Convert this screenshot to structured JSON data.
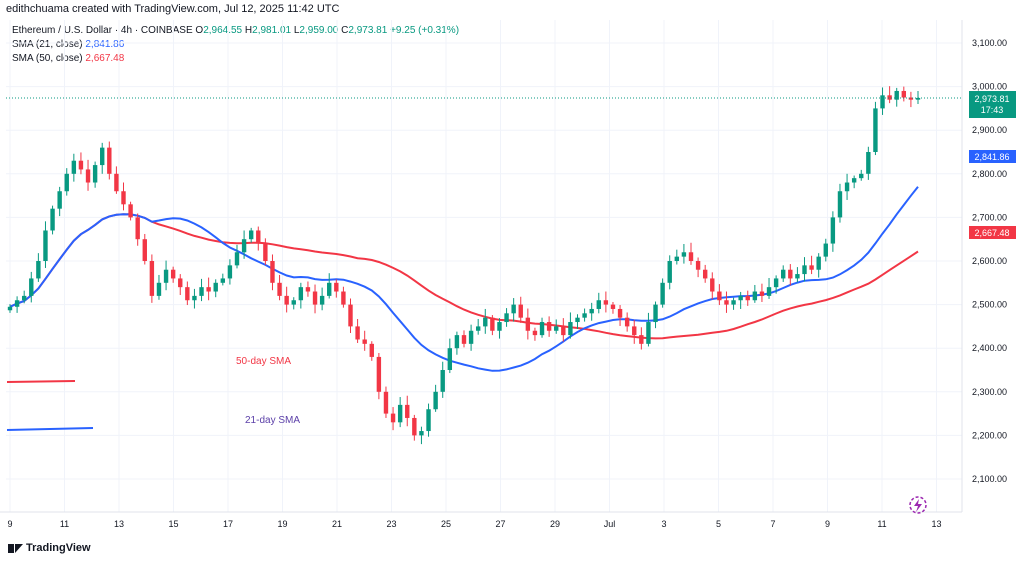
{
  "credit": "edithchuama created with TradingView.com, Jul 12, 2025 11:42 UTC",
  "legend": {
    "symbol": "Ethereum / U.S. Dollar · 4h · COINBASE",
    "o_label": "O",
    "o_value": "2,964.55",
    "h_label": "H",
    "h_value": "2,981.01",
    "l_label": "L",
    "l_value": "2,959.00",
    "c_label": "C",
    "c_value": "2,973.81",
    "change": "+9.25 (+0.31%)",
    "sma21_label": "SMA (21, close)",
    "sma21_value": "2,841.86",
    "sma50_label": "SMA (50, close)",
    "sma50_value": "2,667.48"
  },
  "price_tag": {
    "price": "2,973.81",
    "countdown": "17:43"
  },
  "branding": "TradingView",
  "colors": {
    "up": "#089981",
    "down": "#f23645",
    "sma21": "#2962ff",
    "sma50": "#f23645",
    "grid": "#f0f3fa"
  },
  "chart_data": {
    "type": "candlestick",
    "title": "Ethereum / U.S. Dollar · 4h · COINBASE",
    "ylim": [
      2020,
      3130
    ],
    "y_ticks": [
      {
        "value": 2100,
        "label": "2,100.00"
      },
      {
        "value": 2200,
        "label": "2,200.00"
      },
      {
        "value": 2300,
        "label": "2,300.00"
      },
      {
        "value": 2400,
        "label": "2,400.00"
      },
      {
        "value": 2500,
        "label": "2,500.00"
      },
      {
        "value": 2600,
        "label": "2,600.00"
      },
      {
        "value": 2700,
        "label": "2,700.00"
      },
      {
        "value": 2800,
        "label": "2,800.00"
      },
      {
        "value": 2900,
        "label": "2,900.00"
      },
      {
        "value": 3000,
        "label": "3,000.00"
      },
      {
        "value": 3100,
        "label": "3,100.00"
      }
    ],
    "x_ticks": [
      "9",
      "11",
      "13",
      "15",
      "17",
      "19",
      "21",
      "23",
      "25",
      "27",
      "29",
      "Jul",
      "3",
      "5",
      "7",
      "9",
      "11",
      "13"
    ],
    "candle_closes": [
      2495,
      2510,
      2520,
      2560,
      2600,
      2670,
      2720,
      2760,
      2800,
      2830,
      2810,
      2780,
      2820,
      2860,
      2800,
      2760,
      2730,
      2700,
      2650,
      2600,
      2520,
      2550,
      2580,
      2560,
      2540,
      2510,
      2520,
      2540,
      2530,
      2550,
      2560,
      2590,
      2620,
      2650,
      2670,
      2640,
      2600,
      2550,
      2520,
      2500,
      2510,
      2540,
      2530,
      2500,
      2520,
      2550,
      2530,
      2500,
      2450,
      2420,
      2410,
      2380,
      2300,
      2250,
      2230,
      2270,
      2240,
      2200,
      2210,
      2260,
      2300,
      2350,
      2400,
      2430,
      2410,
      2440,
      2450,
      2470,
      2440,
      2460,
      2480,
      2500,
      2470,
      2440,
      2430,
      2460,
      2440,
      2450,
      2430,
      2460,
      2470,
      2480,
      2490,
      2510,
      2500,
      2490,
      2470,
      2450,
      2430,
      2410,
      2460,
      2500,
      2550,
      2600,
      2610,
      2620,
      2600,
      2580,
      2560,
      2530,
      2510,
      2500,
      2510,
      2520,
      2510,
      2530,
      2520,
      2540,
      2560,
      2580,
      2560,
      2570,
      2590,
      2580,
      2610,
      2640,
      2700,
      2760,
      2780,
      2790,
      2800,
      2850,
      2950,
      2980,
      2970,
      2990,
      2975,
      2970,
      2974
    ],
    "series": [
      {
        "name": "SMA (21, close)",
        "last": 2841.86
      },
      {
        "name": "SMA (50, close)",
        "last": 2667.48
      }
    ],
    "annotations": [
      {
        "text": "50-day SMA"
      },
      {
        "text": "21-day SMA"
      }
    ],
    "last_price_line": 2973.81
  }
}
